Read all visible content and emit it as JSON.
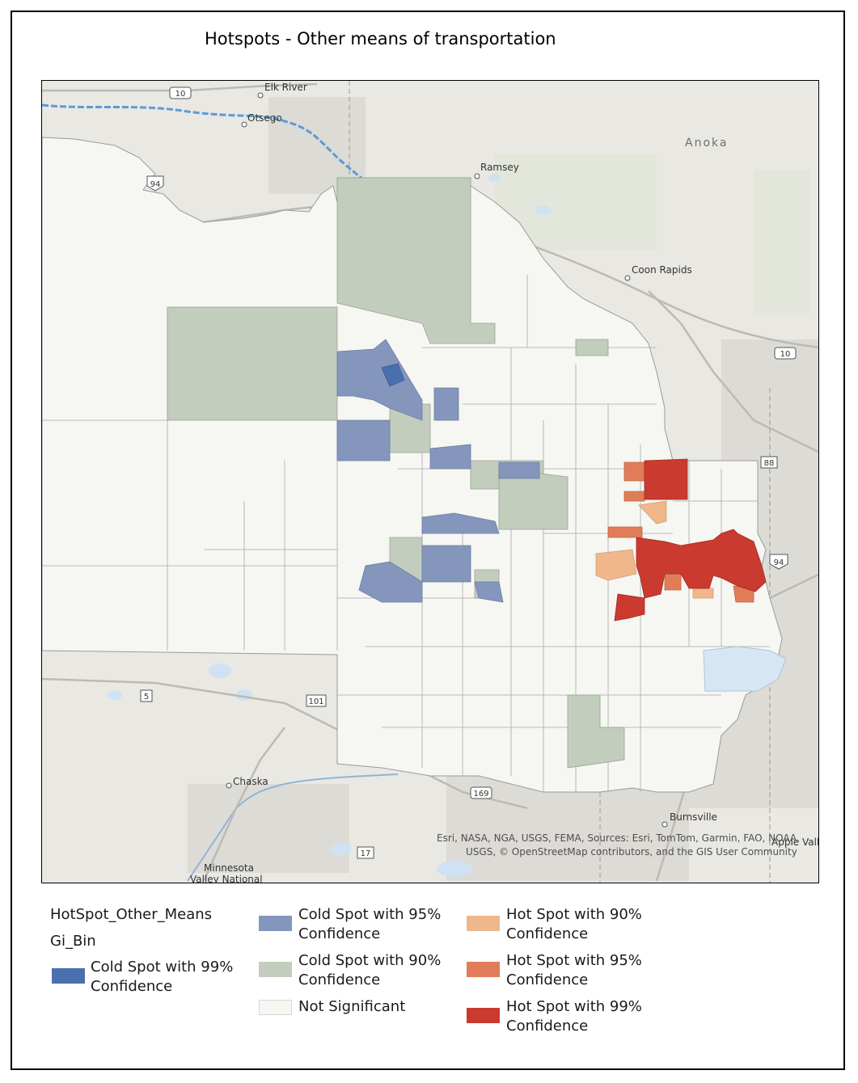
{
  "title": "Hotspots - Other means of transportation",
  "map": {
    "places": {
      "elk_river": "Elk River",
      "otsego": "Otsego",
      "ramsey": "Ramsey",
      "anoka": "Anoka",
      "coon_rapids": "Coon Rapids",
      "chaska": "Chaska",
      "burnsville": "Burnsville",
      "apple_valley": "Apple Valley",
      "minnesota_valley_1": "Minnesota",
      "minnesota_valley_2": "Valley National"
    },
    "highways": {
      "us10_nw": "10",
      "i94_nw": "94",
      "us10_ne": "10",
      "i94_e": "94",
      "hw88": "88",
      "hw5": "5",
      "hw101": "101",
      "us169": "169",
      "hw17": "17"
    },
    "attribution_line1": "Esri, NASA, NGA, USGS, FEMA, Sources: Esri, TomTom, Garmin, FAO, NOAA,",
    "attribution_line2": "USGS, © OpenStreetMap contributors, and the GIS User Community"
  },
  "legend": {
    "layer_name": "HotSpot_Other_Means",
    "field_name": "Gi_Bin",
    "items": [
      {
        "line1": "Cold Spot with 99%",
        "line2": "Confidence",
        "color": "#4a6fae"
      },
      {
        "line1": "Cold Spot with 95%",
        "line2": "Confidence",
        "color": "#8496bc"
      },
      {
        "line1": "Cold Spot with 90%",
        "line2": "Confidence",
        "color": "#c3cdbd"
      },
      {
        "line1": "Not Significant",
        "line2": "",
        "color": "#f6f6f2"
      },
      {
        "line1": "Hot Spot with 90%",
        "line2": "Confidence",
        "color": "#f0b88a"
      },
      {
        "line1": "Hot Spot with 95%",
        "line2": "Confidence",
        "color": "#e07d58"
      },
      {
        "line1": "Hot Spot with 99%",
        "line2": "Confidence",
        "color": "#cb3a2f"
      }
    ]
  },
  "colors": {
    "basemap": "#e9e8e3",
    "study_area": "#f6f6f2",
    "water": "#d6e7f3",
    "river": "#5b9bd5",
    "urban": "#d9d7d2"
  }
}
